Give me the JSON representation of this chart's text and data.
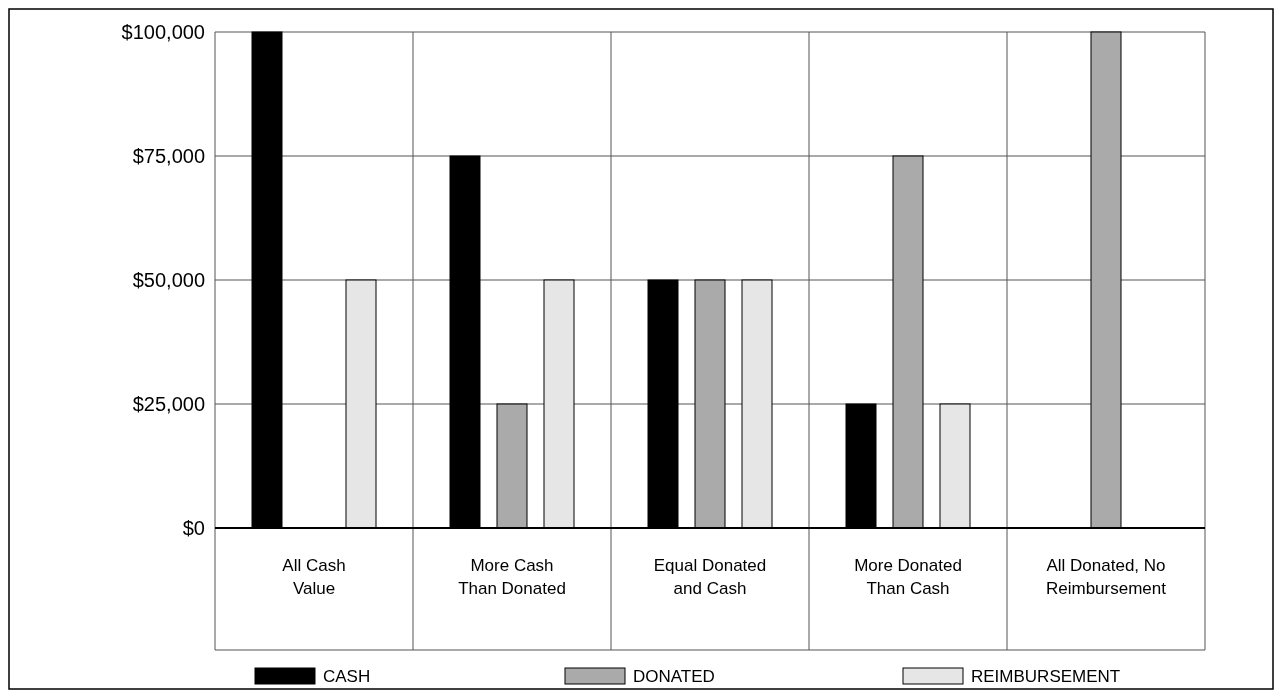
{
  "chart_data": {
    "type": "bar",
    "categories": [
      "All Cash Value",
      "More Cash Than Donated",
      "Equal Donated and Cash",
      "More Donated Than Cash",
      "All Donated, No Reimbursement"
    ],
    "series": [
      {
        "name": "CASH",
        "color": "#000000",
        "values": [
          100000,
          75000,
          50000,
          25000,
          0
        ]
      },
      {
        "name": "DONATED",
        "color": "#aaaaaa",
        "values": [
          0,
          25000,
          50000,
          75000,
          100000
        ]
      },
      {
        "name": "REIMBURSEMENT",
        "color": "#e6e6e6",
        "values": [
          50000,
          50000,
          50000,
          25000,
          0
        ]
      }
    ],
    "ylim": [
      0,
      100000
    ],
    "yticks": [
      {
        "value": 0,
        "label": "$0"
      },
      {
        "value": 25000,
        "label": "$25,000"
      },
      {
        "value": 50000,
        "label": "$50,000"
      },
      {
        "value": 75000,
        "label": "$75,000"
      },
      {
        "value": 100000,
        "label": "$100,000"
      }
    ],
    "grid": "y",
    "legend": "bottom"
  }
}
